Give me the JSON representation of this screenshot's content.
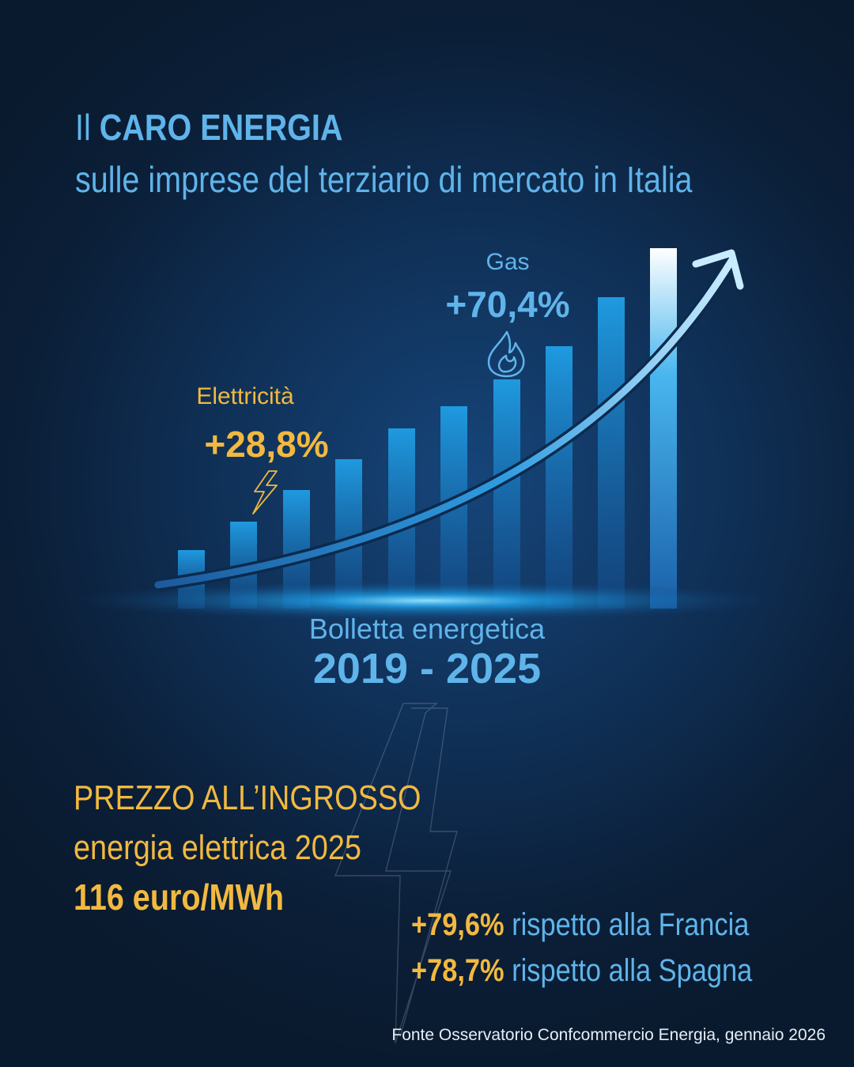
{
  "title": {
    "prefix": "Il",
    "bold": "CARO ENERGIA",
    "subtitle": "sulle imprese del terziario di mercato in Italia"
  },
  "highlights": {
    "electricity": {
      "label": "Elettricità",
      "value": "+28,8%",
      "icon": "lightning-bolt-icon",
      "color": "#f2b940"
    },
    "gas": {
      "label": "Gas",
      "value": "+70,4%",
      "icon": "flame-icon",
      "color": "#5fb4ea"
    }
  },
  "bill": {
    "label": "Bolletta energetica",
    "years": "2019 - 2025"
  },
  "wholesale": {
    "line1": "PREZZO ALL’INGROSSO",
    "line2": "energia elettrica 2025",
    "price": "116 euro/MWh",
    "comparisons": [
      {
        "value": "+79,6%",
        "text": "rispetto alla Francia"
      },
      {
        "value": "+78,7%",
        "text": "rispetto alla Spagna"
      }
    ]
  },
  "source": "Fonte Osservatorio Confcommercio Energia, gennaio 2026",
  "colors": {
    "accent_blue": "#5fb4ea",
    "accent_yellow": "#f2b940",
    "background": "#0f2f55"
  }
}
